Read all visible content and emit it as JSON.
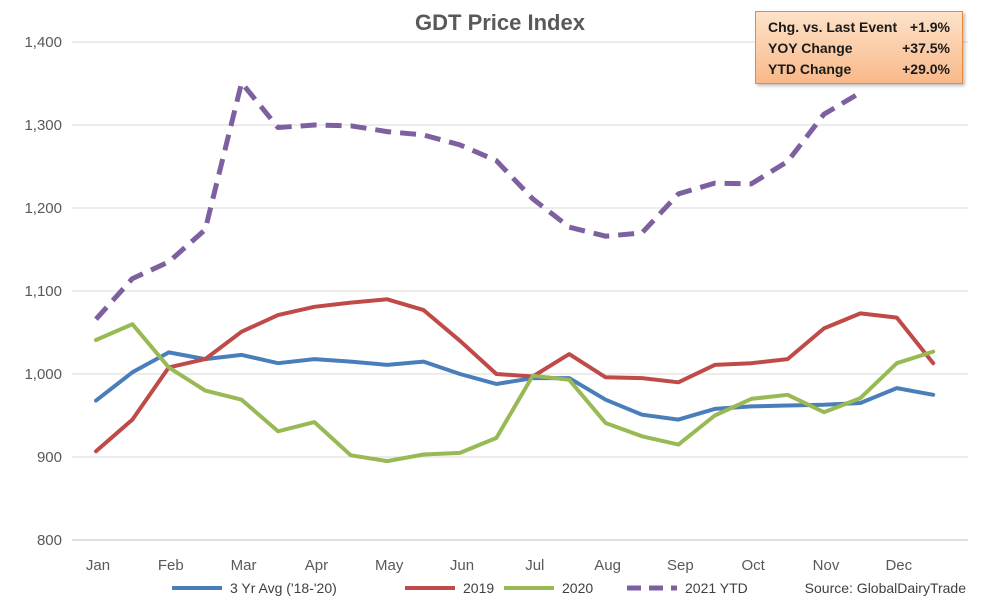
{
  "chart_data": {
    "type": "line",
    "title": "GDT Price Index",
    "xlabel": "",
    "ylabel": "",
    "ylim": [
      800,
      1400
    ],
    "yticks": [
      800,
      900,
      1000,
      1100,
      1200,
      1300,
      1400
    ],
    "ytick_labels": [
      "800",
      "900",
      "1,000",
      "1,100",
      "1,200",
      "1,300",
      "1,400"
    ],
    "month_labels": [
      "Jan",
      "Feb",
      "Mar",
      "Apr",
      "May",
      "Jun",
      "Jul",
      "Aug",
      "Sep",
      "Oct",
      "Nov",
      "Dec"
    ],
    "grid": "horizontal",
    "legend_position": "bottom",
    "source": "Source: GlobalDairyTrade",
    "series": [
      {
        "name": "3 Yr Avg ('18-'20)",
        "color": "#4a7ebb",
        "dash": false,
        "values": [
          968,
          1002,
          1026,
          1018,
          1023,
          1013,
          1018,
          1015,
          1011,
          1015,
          1000,
          988,
          995,
          995,
          969,
          951,
          945,
          958,
          961,
          962,
          963,
          965,
          983,
          975
        ]
      },
      {
        "name": "2019",
        "color": "#be4b48",
        "dash": false,
        "values": [
          907,
          945,
          1008,
          1018,
          1051,
          1071,
          1081,
          1086,
          1090,
          1077,
          1040,
          1000,
          997,
          1024,
          996,
          995,
          990,
          1011,
          1013,
          1018,
          1055,
          1073,
          1068,
          1013
        ]
      },
      {
        "name": "2020",
        "color": "#98b954",
        "dash": false,
        "values": [
          1041,
          1060,
          1008,
          980,
          969,
          931,
          942,
          902,
          895,
          903,
          905,
          923,
          998,
          993,
          941,
          925,
          915,
          950,
          970,
          975,
          954,
          971,
          1013,
          1027
        ]
      },
      {
        "name": "2021 YTD",
        "color": "#7d60a0",
        "dash": true,
        "values": [
          1066,
          1115,
          1135,
          1174,
          1351,
          1297,
          1300,
          1299,
          1292,
          1288,
          1276,
          1257,
          1211,
          1177,
          1166,
          1170,
          1217,
          1230,
          1229,
          1256,
          1313,
          1339
        ]
      }
    ]
  },
  "stats": [
    {
      "label": "Chg. vs. Last Event",
      "value": "+1.9%"
    },
    {
      "label": "YOY Change",
      "value": "+37.5%"
    },
    {
      "label": "YTD Change",
      "value": "+29.0%"
    }
  ]
}
